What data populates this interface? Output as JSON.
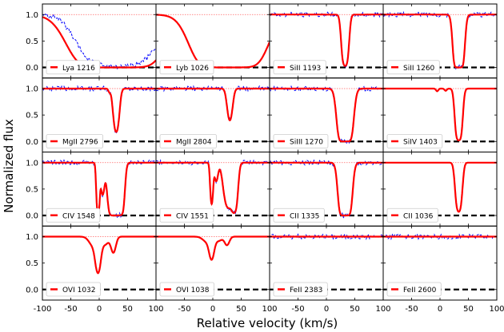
{
  "figure": {
    "xlabel": "Relative velocity (km/s)",
    "ylabel": "Normalized flux",
    "colors": {
      "model": "#ff0000",
      "data": "#0000ff",
      "zero": "#000000",
      "unity": "#ff6666",
      "axes": "#000000",
      "legend_border": "#cccccc"
    }
  },
  "chart_data": {
    "type": "line",
    "layout": "4x4 grid of absorption-line panels",
    "xlim": [
      -100,
      100
    ],
    "ylim": [
      -0.2,
      1.2
    ],
    "xticks": [
      -100,
      -50,
      0,
      50,
      100
    ],
    "xtick_labels": [
      "-100",
      "-50",
      "0",
      "50",
      "100"
    ],
    "yticks": [
      0.0,
      0.5,
      1.0
    ],
    "ytick_labels": [
      "0.0",
      "0.5",
      "1.0"
    ],
    "continuum_level": 1.0,
    "zero_level": 0.0,
    "series_legend": {
      "model": "red solid line (Voigt profile fit)",
      "data": "blue dashed line (observed spectrum)"
    },
    "panels": [
      {
        "label": "Lya 1216",
        "model_components": [
          {
            "v": 30,
            "depth": 1.0,
            "width": 40
          }
        ],
        "data": true
      },
      {
        "label": "Lyb 1026",
        "model_components": [
          {
            "v": 28,
            "depth": 1.0,
            "width": 32
          }
        ],
        "data": false
      },
      {
        "label": "SiII 1193",
        "model_components": [
          {
            "v": 33,
            "depth": 0.97,
            "width": 4
          }
        ],
        "data": true
      },
      {
        "label": "SiII 1260",
        "model_components": [
          {
            "v": 33,
            "depth": 1.0,
            "width": 5
          }
        ],
        "data": true
      },
      {
        "label": "MgII 2796",
        "model_components": [
          {
            "v": 30,
            "depth": 0.82,
            "width": 4
          },
          {
            "v": 18,
            "depth": 0.06,
            "width": 2
          }
        ],
        "data": true
      },
      {
        "label": "MgII 2804",
        "model_components": [
          {
            "v": 30,
            "depth": 0.6,
            "width": 4
          }
        ],
        "data": true
      },
      {
        "label": "SiIII 1270",
        "model_components": [
          {
            "v": 33,
            "depth": 1.0,
            "width": 7
          }
        ],
        "data": true
      },
      {
        "label": "SiIV 1403",
        "model_components": [
          {
            "v": 33,
            "depth": 0.98,
            "width": 4
          },
          {
            "v": -5,
            "depth": 0.05,
            "width": 2
          },
          {
            "v": 10,
            "depth": 0.04,
            "width": 2
          }
        ],
        "data": false
      },
      {
        "label": "CIV 1548",
        "model_components": [
          {
            "v": -2,
            "depth": 0.95,
            "width": 2
          },
          {
            "v": 6,
            "depth": 0.6,
            "width": 3
          },
          {
            "v": 27,
            "depth": 1.0,
            "width": 6
          },
          {
            "v": 38,
            "depth": 0.97,
            "width": 4
          }
        ],
        "data": true
      },
      {
        "label": "CIV 1551",
        "model_components": [
          {
            "v": -2,
            "depth": 0.78,
            "width": 2
          },
          {
            "v": 6,
            "depth": 0.35,
            "width": 3
          },
          {
            "v": 27,
            "depth": 0.85,
            "width": 6
          },
          {
            "v": 38,
            "depth": 0.93,
            "width": 4
          }
        ],
        "data": true
      },
      {
        "label": "CII 1335",
        "model_components": [
          {
            "v": 33,
            "depth": 1.0,
            "width": 6
          }
        ],
        "data": true
      },
      {
        "label": "CII 1036",
        "model_components": [
          {
            "v": 33,
            "depth": 0.93,
            "width": 4
          }
        ],
        "data": false
      },
      {
        "label": "OVI 1032",
        "model_components": [
          {
            "v": -2,
            "depth": 0.65,
            "width": 4
          },
          {
            "v": -10,
            "depth": 0.18,
            "width": 7
          },
          {
            "v": 10,
            "depth": 0.15,
            "width": 6
          },
          {
            "v": 25,
            "depth": 0.3,
            "width": 4
          }
        ],
        "data": false
      },
      {
        "label": "OVI 1038",
        "model_components": [
          {
            "v": -2,
            "depth": 0.4,
            "width": 4
          },
          {
            "v": -10,
            "depth": 0.1,
            "width": 7
          },
          {
            "v": 10,
            "depth": 0.08,
            "width": 6
          },
          {
            "v": 25,
            "depth": 0.16,
            "width": 4
          }
        ],
        "data": false
      },
      {
        "label": "FeII 2383",
        "model_components": [],
        "data": true
      },
      {
        "label": "FeII 2600",
        "model_components": [],
        "data": true
      }
    ]
  }
}
